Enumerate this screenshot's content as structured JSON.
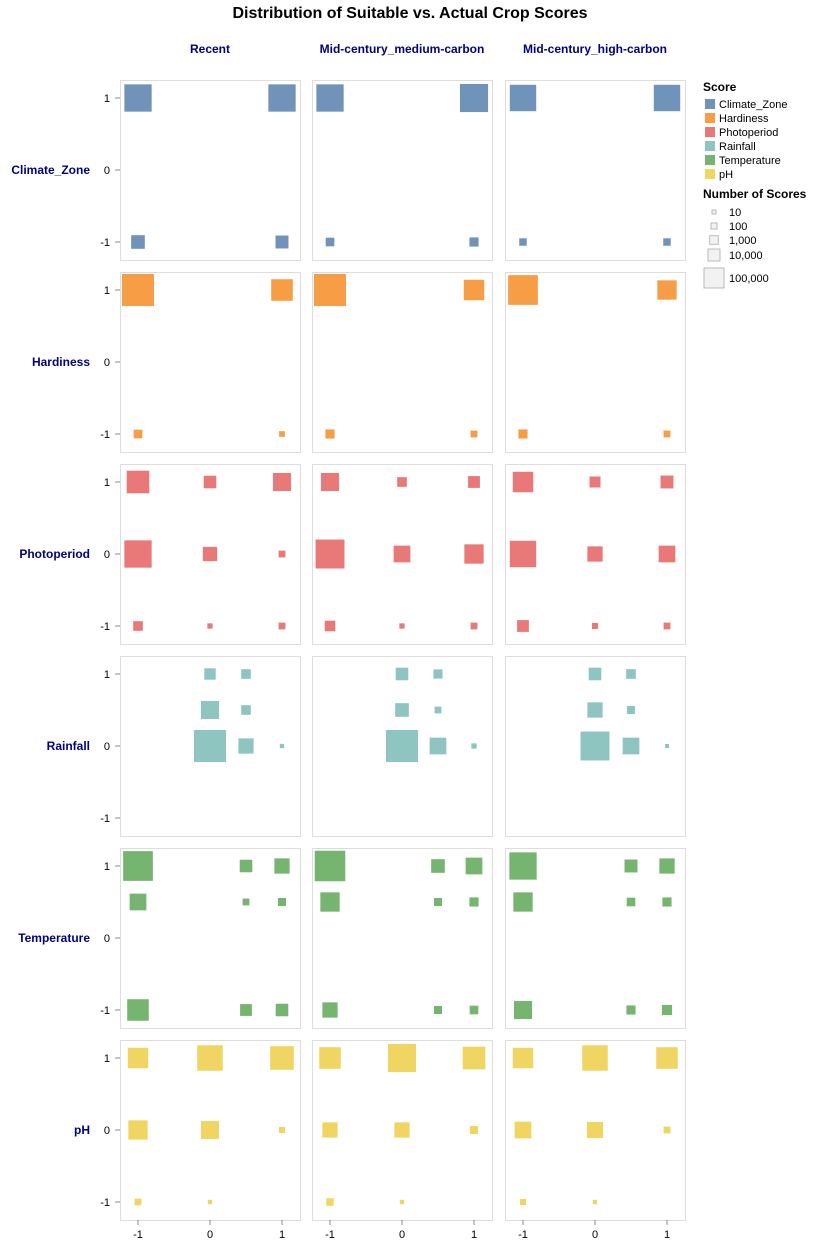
{
  "chart_data": {
    "type": "scatter",
    "mark": "square",
    "title": "Distribution of Suitable vs. Actual Crop Scores",
    "columns": [
      "Recent",
      "Mid-century_medium-carbon",
      "Mid-century_high-carbon"
    ],
    "rows": [
      "Climate_Zone",
      "Hardiness",
      "Photoperiod",
      "Rainfall",
      "Temperature",
      "pH"
    ],
    "x_ticks": [
      "-1",
      "0",
      "1"
    ],
    "y_ticks": [
      "1",
      "0",
      "-1"
    ],
    "xlim": [
      -1,
      1
    ],
    "ylim": [
      -1,
      1
    ],
    "grid": false,
    "legend_placement": "right",
    "color_legend": {
      "title": "Score",
      "items": [
        {
          "label": "Climate_Zone",
          "color": "#4c78a8"
        },
        {
          "label": "Hardiness",
          "color": "#f58518"
        },
        {
          "label": "Photoperiod",
          "color": "#e45756"
        },
        {
          "label": "Rainfall",
          "color": "#72b7b2"
        },
        {
          "label": "Temperature",
          "color": "#54a24b"
        },
        {
          "label": "pH",
          "color": "#eeca3b"
        }
      ]
    },
    "size_legend": {
      "title": "Number of Scores",
      "items": [
        {
          "label": "10",
          "value": 10
        },
        {
          "label": "100",
          "value": 100
        },
        {
          "label": "1,000",
          "value": 1000
        },
        {
          "label": "10,000",
          "value": 10000
        },
        {
          "label": "100,000",
          "value": 100000
        }
      ]
    },
    "panels": [
      {
        "row": "Climate_Zone",
        "column": "Recent",
        "points": [
          {
            "x": -1,
            "y": 1,
            "n": 80000
          },
          {
            "x": 1,
            "y": 1,
            "n": 80000
          },
          {
            "x": -1,
            "y": -1,
            "n": 20000
          },
          {
            "x": 1,
            "y": -1,
            "n": 18000
          }
        ]
      },
      {
        "row": "Climate_Zone",
        "column": "Mid-century_medium-carbon",
        "points": [
          {
            "x": -1,
            "y": 1,
            "n": 80000
          },
          {
            "x": 1,
            "y": 1,
            "n": 85000
          },
          {
            "x": -1,
            "y": -1,
            "n": 8000
          },
          {
            "x": 1,
            "y": -1,
            "n": 9000
          }
        ]
      },
      {
        "row": "Climate_Zone",
        "column": "Mid-century_high-carbon",
        "points": [
          {
            "x": -1,
            "y": 1,
            "n": 75000
          },
          {
            "x": 1,
            "y": 1,
            "n": 75000
          },
          {
            "x": -1,
            "y": -1,
            "n": 6000
          },
          {
            "x": 1,
            "y": -1,
            "n": 6000
          }
        ]
      },
      {
        "row": "Hardiness",
        "column": "Recent",
        "points": [
          {
            "x": -1,
            "y": 1,
            "n": 110000
          },
          {
            "x": 1,
            "y": 1,
            "n": 50000
          },
          {
            "x": -1,
            "y": -1,
            "n": 8000
          },
          {
            "x": 1,
            "y": -1,
            "n": 3500
          }
        ]
      },
      {
        "row": "Hardiness",
        "column": "Mid-century_medium-carbon",
        "points": [
          {
            "x": -1,
            "y": 1,
            "n": 110000
          },
          {
            "x": 1,
            "y": 1,
            "n": 45000
          },
          {
            "x": -1,
            "y": -1,
            "n": 9000
          },
          {
            "x": 1,
            "y": -1,
            "n": 5000
          }
        ]
      },
      {
        "row": "Hardiness",
        "column": "Mid-century_high-carbon",
        "points": [
          {
            "x": -1,
            "y": 1,
            "n": 95000
          },
          {
            "x": 1,
            "y": 1,
            "n": 40000
          },
          {
            "x": -1,
            "y": -1,
            "n": 9000
          },
          {
            "x": 1,
            "y": -1,
            "n": 5000
          }
        ]
      },
      {
        "row": "Photoperiod",
        "column": "Recent",
        "points": [
          {
            "x": -1,
            "y": 1,
            "n": 55000
          },
          {
            "x": 0,
            "y": 1,
            "n": 17000
          },
          {
            "x": 1,
            "y": 1,
            "n": 35000
          },
          {
            "x": -1,
            "y": 0,
            "n": 80000
          },
          {
            "x": 0,
            "y": 0,
            "n": 22000
          },
          {
            "x": 1,
            "y": 0,
            "n": 5000
          },
          {
            "x": -1,
            "y": -1,
            "n": 10000
          },
          {
            "x": 0,
            "y": -1,
            "n": 3000
          },
          {
            "x": 1,
            "y": -1,
            "n": 5000
          }
        ]
      },
      {
        "row": "Photoperiod",
        "column": "Mid-century_medium-carbon",
        "points": [
          {
            "x": -1,
            "y": 1,
            "n": 35000
          },
          {
            "x": 0,
            "y": 1,
            "n": 10000
          },
          {
            "x": 1,
            "y": 1,
            "n": 15000
          },
          {
            "x": -1,
            "y": 0,
            "n": 90000
          },
          {
            "x": 0,
            "y": 0,
            "n": 30000
          },
          {
            "x": 1,
            "y": 0,
            "n": 40000
          },
          {
            "x": -1,
            "y": -1,
            "n": 12000
          },
          {
            "x": 0,
            "y": -1,
            "n": 3000
          },
          {
            "x": 1,
            "y": -1,
            "n": 5000
          }
        ]
      },
      {
        "row": "Photoperiod",
        "column": "Mid-century_high-carbon",
        "points": [
          {
            "x": -1,
            "y": 1,
            "n": 45000
          },
          {
            "x": 0,
            "y": 1,
            "n": 13000
          },
          {
            "x": 1,
            "y": 1,
            "n": 18000
          },
          {
            "x": -1,
            "y": 0,
            "n": 75000
          },
          {
            "x": 0,
            "y": 0,
            "n": 25000
          },
          {
            "x": 1,
            "y": 0,
            "n": 30000
          },
          {
            "x": -1,
            "y": -1,
            "n": 15000
          },
          {
            "x": 0,
            "y": -1,
            "n": 4000
          },
          {
            "x": 1,
            "y": -1,
            "n": 5000
          }
        ]
      },
      {
        "row": "Rainfall",
        "column": "Recent",
        "points": [
          {
            "x": 0,
            "y": 1,
            "n": 14000
          },
          {
            "x": 0.5,
            "y": 1,
            "n": 10000
          },
          {
            "x": 0,
            "y": 0.5,
            "n": 35000
          },
          {
            "x": 0.5,
            "y": 0.5,
            "n": 10000
          },
          {
            "x": 0,
            "y": 0,
            "n": 110000
          },
          {
            "x": 0.5,
            "y": 0,
            "n": 25000
          },
          {
            "x": 1,
            "y": 0,
            "n": 2000
          }
        ]
      },
      {
        "row": "Rainfall",
        "column": "Mid-century_medium-carbon",
        "points": [
          {
            "x": 0,
            "y": 1,
            "n": 17000
          },
          {
            "x": 0.5,
            "y": 1,
            "n": 9000
          },
          {
            "x": 0,
            "y": 0.5,
            "n": 20000
          },
          {
            "x": 0.5,
            "y": 0.5,
            "n": 5000
          },
          {
            "x": 0,
            "y": 0,
            "n": 110000
          },
          {
            "x": 0.5,
            "y": 0,
            "n": 30000
          },
          {
            "x": 1,
            "y": 0,
            "n": 3000
          }
        ]
      },
      {
        "row": "Rainfall",
        "column": "Mid-century_high-carbon",
        "points": [
          {
            "x": 0,
            "y": 1,
            "n": 17000
          },
          {
            "x": 0.5,
            "y": 1,
            "n": 10000
          },
          {
            "x": 0,
            "y": 0.5,
            "n": 25000
          },
          {
            "x": 0.5,
            "y": 0.5,
            "n": 7000
          },
          {
            "x": 0,
            "y": 0,
            "n": 90000
          },
          {
            "x": 0.5,
            "y": 0,
            "n": 30000
          },
          {
            "x": 1,
            "y": 0,
            "n": 1000
          }
        ]
      },
      {
        "row": "Temperature",
        "column": "Recent",
        "points": [
          {
            "x": -1,
            "y": 1,
            "n": 95000
          },
          {
            "x": 0.5,
            "y": 1,
            "n": 17000
          },
          {
            "x": 1,
            "y": 1,
            "n": 25000
          },
          {
            "x": -1,
            "y": 0.5,
            "n": 30000
          },
          {
            "x": 0.5,
            "y": 0.5,
            "n": 5000
          },
          {
            "x": 1,
            "y": 0.5,
            "n": 7000
          },
          {
            "x": -1,
            "y": -1,
            "n": 50000
          },
          {
            "x": 0.5,
            "y": -1,
            "n": 15000
          },
          {
            "x": 1,
            "y": -1,
            "n": 17000
          }
        ]
      },
      {
        "row": "Temperature",
        "column": "Mid-century_medium-carbon",
        "points": [
          {
            "x": -1,
            "y": 1,
            "n": 100000
          },
          {
            "x": 0.5,
            "y": 1,
            "n": 20000
          },
          {
            "x": 1,
            "y": 1,
            "n": 30000
          },
          {
            "x": -1,
            "y": 0.5,
            "n": 40000
          },
          {
            "x": 0.5,
            "y": 0.5,
            "n": 7000
          },
          {
            "x": 1,
            "y": 0.5,
            "n": 9000
          },
          {
            "x": -1,
            "y": -1,
            "n": 25000
          },
          {
            "x": 0.5,
            "y": -1,
            "n": 7000
          },
          {
            "x": 1,
            "y": -1,
            "n": 8000
          }
        ]
      },
      {
        "row": "Temperature",
        "column": "Mid-century_high-carbon",
        "points": [
          {
            "x": -1,
            "y": 1,
            "n": 80000
          },
          {
            "x": 0.5,
            "y": 1,
            "n": 18000
          },
          {
            "x": 1,
            "y": 1,
            "n": 25000
          },
          {
            "x": -1,
            "y": 0.5,
            "n": 40000
          },
          {
            "x": 0.5,
            "y": 0.5,
            "n": 8000
          },
          {
            "x": 1,
            "y": 0.5,
            "n": 9000
          },
          {
            "x": -1,
            "y": -1,
            "n": 35000
          },
          {
            "x": 0.5,
            "y": -1,
            "n": 9000
          },
          {
            "x": 1,
            "y": -1,
            "n": 11000
          }
        ]
      },
      {
        "row": "pH",
        "column": "Recent",
        "points": [
          {
            "x": -1,
            "y": 1,
            "n": 45000
          },
          {
            "x": 0,
            "y": 1,
            "n": 70000
          },
          {
            "x": 1,
            "y": 1,
            "n": 60000
          },
          {
            "x": -1,
            "y": 0,
            "n": 40000
          },
          {
            "x": 0,
            "y": 0,
            "n": 35000
          },
          {
            "x": 1,
            "y": 0,
            "n": 4000
          },
          {
            "x": -1,
            "y": -1,
            "n": 5000
          },
          {
            "x": 0,
            "y": -1,
            "n": 2000
          }
        ]
      },
      {
        "row": "pH",
        "column": "Mid-century_medium-carbon",
        "points": [
          {
            "x": -1,
            "y": 1,
            "n": 50000
          },
          {
            "x": 0,
            "y": 1,
            "n": 85000
          },
          {
            "x": 1,
            "y": 1,
            "n": 55000
          },
          {
            "x": -1,
            "y": 0,
            "n": 25000
          },
          {
            "x": 0,
            "y": 0,
            "n": 25000
          },
          {
            "x": 1,
            "y": 0,
            "n": 7000
          },
          {
            "x": -1,
            "y": -1,
            "n": 6000
          },
          {
            "x": 0,
            "y": -1,
            "n": 2000
          }
        ]
      },
      {
        "row": "pH",
        "column": "Mid-century_high-carbon",
        "points": [
          {
            "x": -1,
            "y": 1,
            "n": 45000
          },
          {
            "x": 0,
            "y": 1,
            "n": 70000
          },
          {
            "x": 1,
            "y": 1,
            "n": 50000
          },
          {
            "x": -1,
            "y": 0,
            "n": 30000
          },
          {
            "x": 0,
            "y": 0,
            "n": 28000
          },
          {
            "x": 1,
            "y": 0,
            "n": 5000
          },
          {
            "x": -1,
            "y": -1,
            "n": 4000
          },
          {
            "x": 0,
            "y": -1,
            "n": 2000
          }
        ]
      }
    ]
  }
}
